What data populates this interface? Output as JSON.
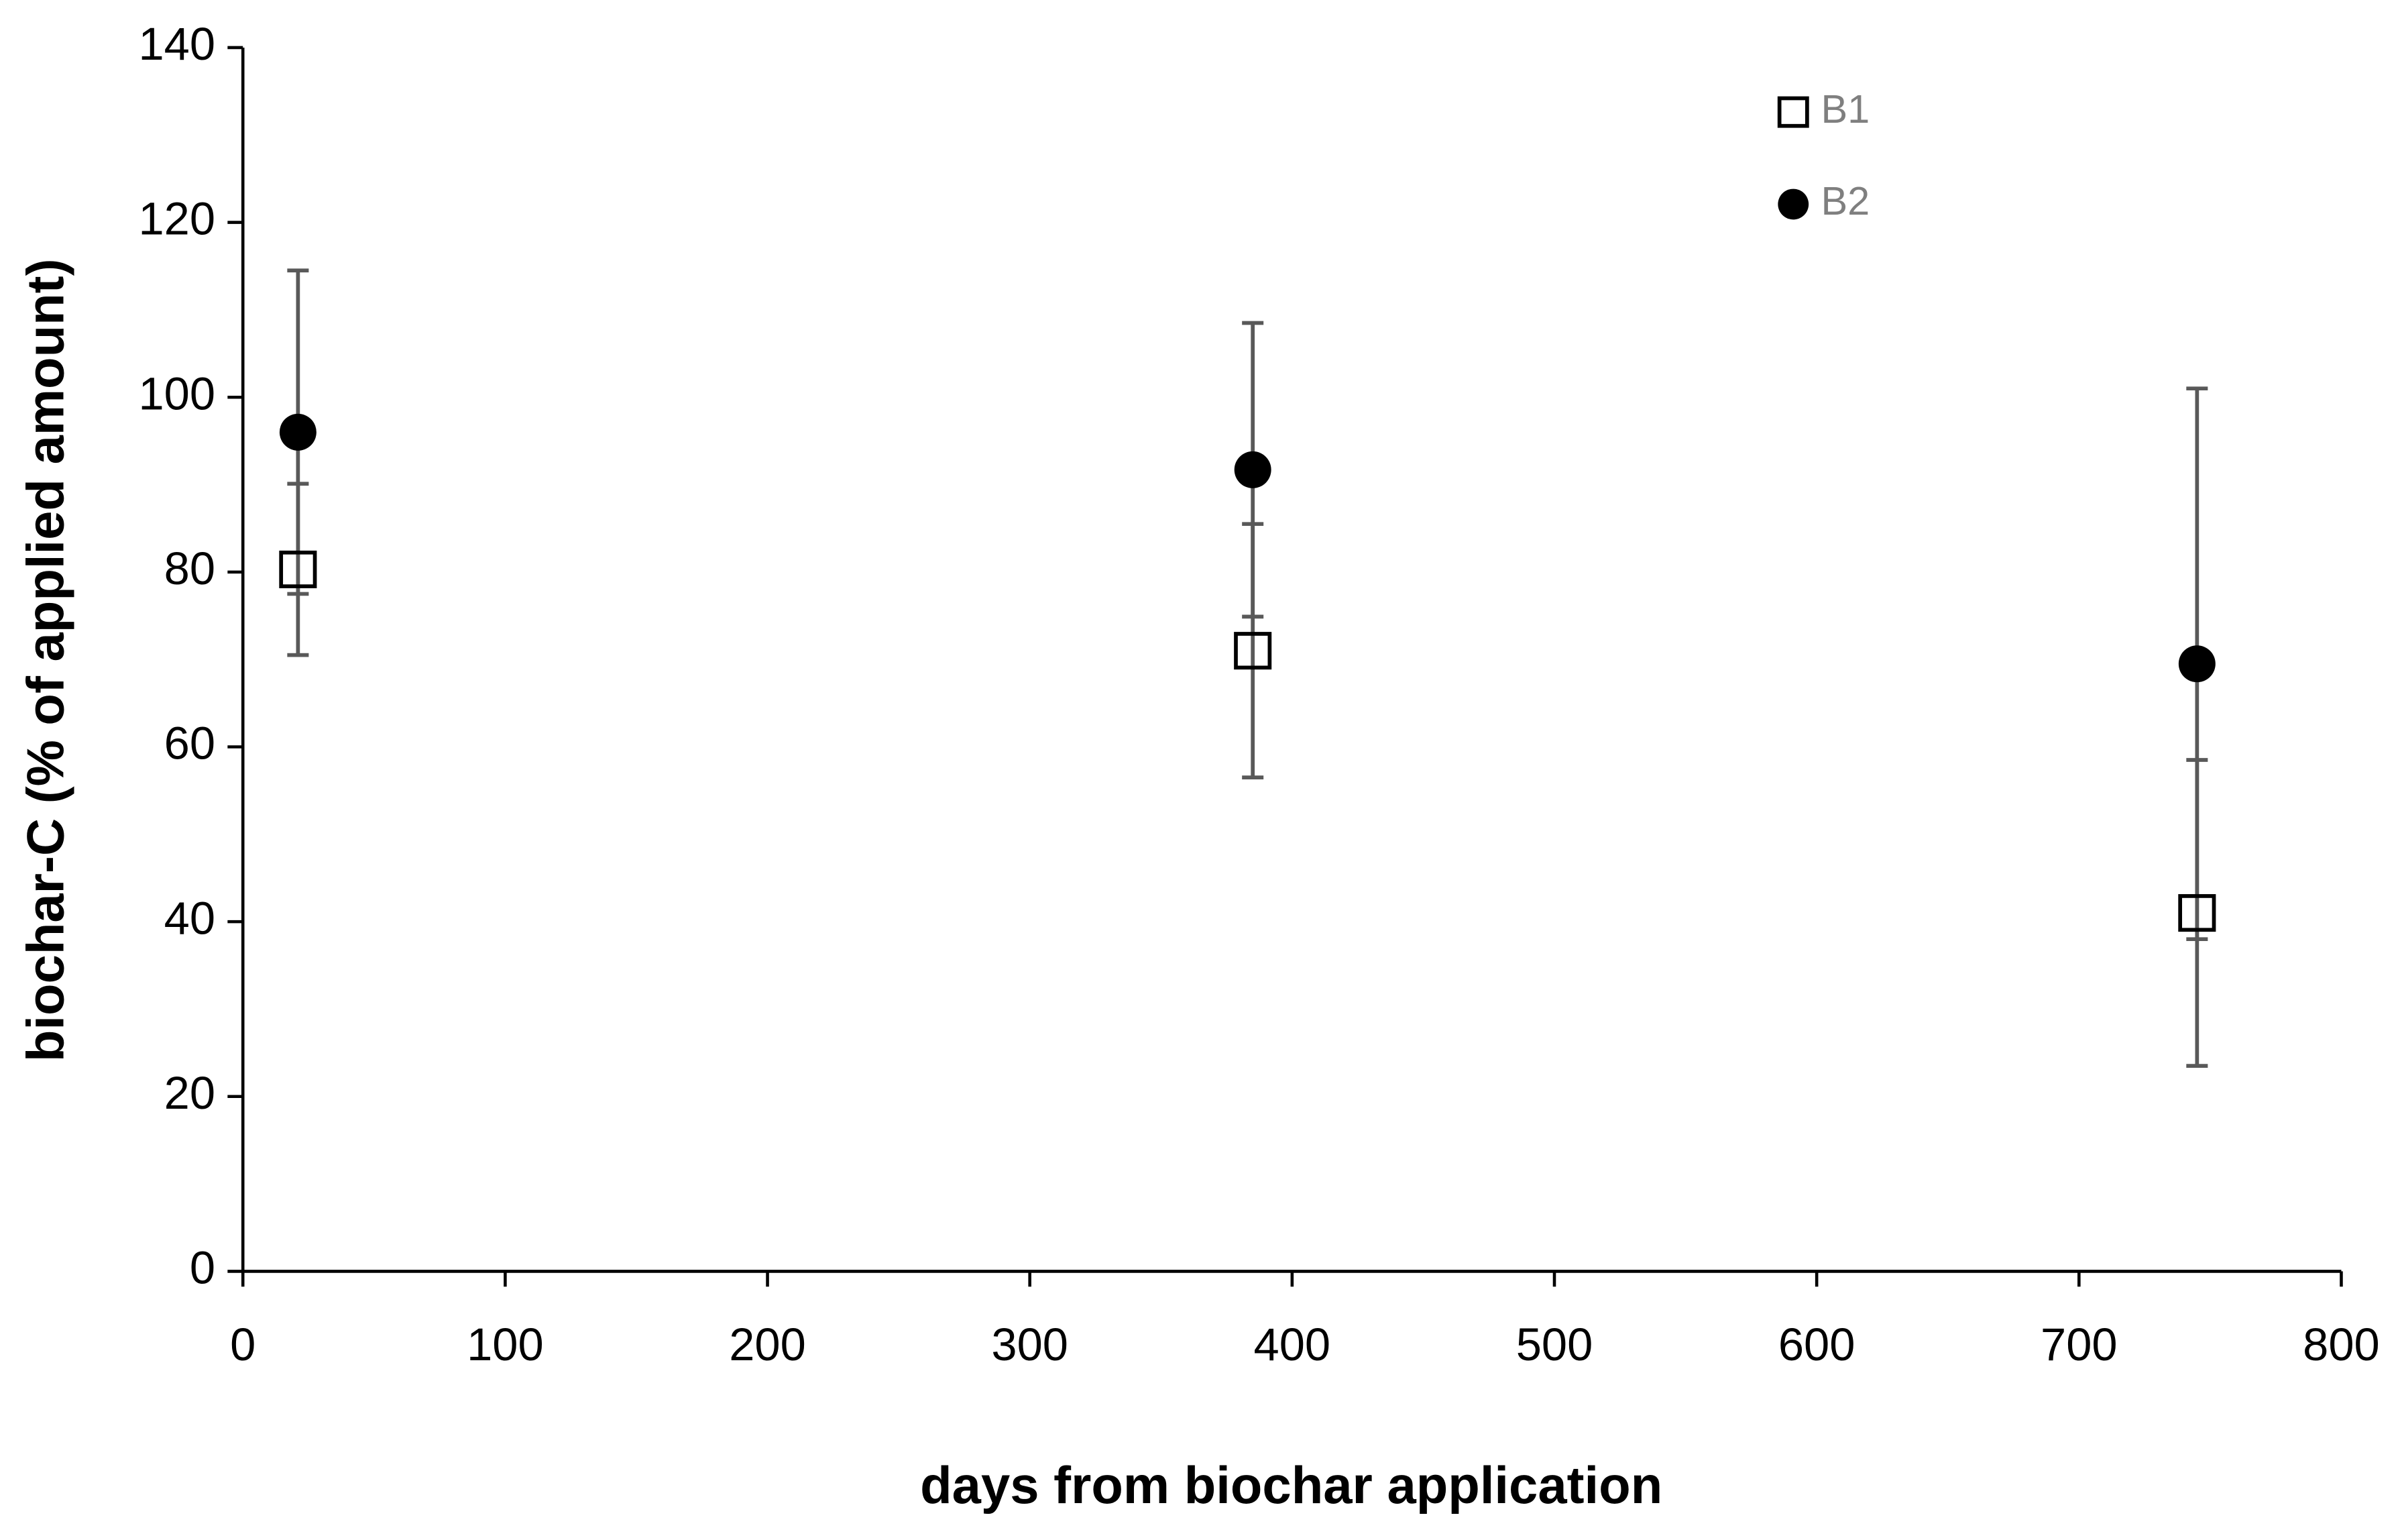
{
  "chart_data": {
    "type": "scatter",
    "x_label": "days from biochar application",
    "y_label": "biochar-C (% of applied amount)",
    "x": [
      21,
      385,
      745
    ],
    "series": [
      {
        "name": "B1",
        "color": "#000000",
        "marker": "square",
        "values": [
          80.3,
          71,
          41
        ],
        "errors": [
          9.8,
          14.5,
          17.5
        ]
      },
      {
        "name": "B2",
        "color": "#000000",
        "marker": "circle",
        "values": [
          96,
          91.7,
          69.5
        ],
        "errors": [
          18.5,
          16.8,
          31.5
        ]
      }
    ],
    "error_color": "#595959",
    "xlim": [
      0,
      800
    ],
    "xticks": [
      0,
      100,
      200,
      300,
      400,
      500,
      600,
      700,
      800
    ],
    "ylim": [
      0,
      140
    ],
    "yticks": [
      0,
      20,
      40,
      60,
      80,
      100,
      120,
      140
    ],
    "legend": "top-right",
    "grid": false
  }
}
